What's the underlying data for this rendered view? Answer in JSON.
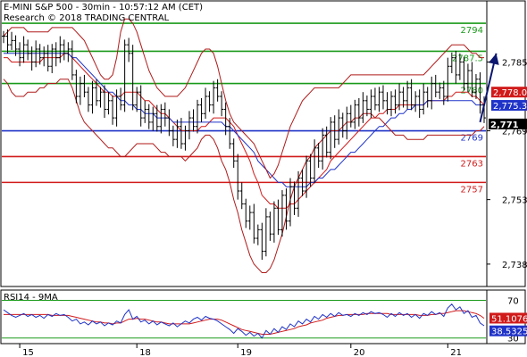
{
  "chart_data": {
    "type": "line",
    "header": {
      "line1": "E-MINI S&P 500 - 30min - 10:57:12 AM (CET)",
      "line2": "Research © 2018 TRADING CENTRAL"
    },
    "price_axis": {
      "ylim": [
        2733,
        2799
      ],
      "ticks": [
        {
          "value": 2785,
          "label": "2,785"
        },
        {
          "value": 2769,
          "label": "2,769"
        },
        {
          "value": 2753,
          "label": "2,753"
        },
        {
          "value": 2738,
          "label": "2,738"
        }
      ]
    },
    "levels": [
      {
        "value": 2794,
        "label": "2794",
        "color": "#1a9a1a"
      },
      {
        "value": 2787.5,
        "label": "2787.5",
        "color": "#1a9a1a"
      },
      {
        "value": 2780,
        "label": "2780",
        "color": "#1a9a1a"
      },
      {
        "value": 2769,
        "label": "2769",
        "color": "#1f33c8"
      },
      {
        "value": 2763,
        "label": "2763",
        "color": "#d11a1a"
      },
      {
        "value": 2757,
        "label": "2757",
        "color": "#d11a1a"
      }
    ],
    "price_tags": [
      {
        "value": 2778.0,
        "label": "2,778.0",
        "bg": "#d11a1a",
        "fg": "#ffffff"
      },
      {
        "value": 2775.33,
        "label": "2,775.33",
        "bg": "#1f33c8",
        "fg": "#ffffff"
      },
      {
        "value": 2771,
        "label": "2,771",
        "bg": "#000000",
        "fg": "#ffffff"
      }
    ],
    "x_axis": {
      "ticks": [
        {
          "i": 4,
          "label": "15"
        },
        {
          "i": 33,
          "label": "18"
        },
        {
          "i": 58,
          "label": "19"
        },
        {
          "i": 86,
          "label": "20"
        },
        {
          "i": 110,
          "label": "21"
        }
      ]
    },
    "price_path": [
      2791,
      2789,
      2790,
      2788,
      2786,
      2789,
      2787,
      2785,
      2788,
      2786,
      2787,
      2784,
      2788,
      2786,
      2789,
      2787,
      2788,
      2782,
      2777,
      2780,
      2778,
      2775,
      2779,
      2776,
      2778,
      2774,
      2776,
      2772,
      2777,
      2775,
      2789,
      2787,
      2775,
      2778,
      2772,
      2774,
      2771,
      2773,
      2770,
      2774,
      2772,
      2769,
      2767,
      2770,
      2766,
      2769,
      2772,
      2770,
      2775,
      2773,
      2777,
      2775,
      2779,
      2777,
      2774,
      2770,
      2766,
      2762,
      2755,
      2752,
      2748,
      2750,
      2744,
      2746,
      2741,
      2749,
      2745,
      2751,
      2746,
      2754,
      2748,
      2756,
      2751,
      2758,
      2755,
      2762,
      2758,
      2765,
      2762,
      2768,
      2764,
      2771,
      2767,
      2772,
      2769,
      2773,
      2771,
      2775,
      2772,
      2776,
      2774,
      2777,
      2775,
      2778,
      2776,
      2774,
      2777,
      2775,
      2778,
      2776,
      2779,
      2775,
      2777,
      2774,
      2778,
      2776,
      2780,
      2778,
      2779,
      2777,
      2784,
      2786,
      2782,
      2785,
      2780,
      2783,
      2778,
      2781,
      2775,
      2772
    ],
    "series": [
      {
        "values": [
          2786,
          2786,
          2785,
          2785,
          2785,
          2785,
          2785,
          2785,
          2785,
          2785,
          2786,
          2786,
          2786,
          2786,
          2786,
          2787,
          2787,
          2786,
          2785,
          2784,
          2783,
          2782,
          2781,
          2780,
          2779,
          2778,
          2778,
          2777,
          2777,
          2777,
          2778,
          2778,
          2778,
          2778,
          2777,
          2776,
          2776,
          2775,
          2774,
          2773,
          2773,
          2772,
          2771,
          2770,
          2769,
          2769,
          2769,
          2769,
          2769,
          2770,
          2770,
          2771,
          2772,
          2772,
          2772,
          2772,
          2771,
          2770,
          2768,
          2766,
          2764,
          2762,
          2759,
          2757,
          2754,
          2753,
          2752,
          2752,
          2751,
          2751,
          2751,
          2752,
          2752,
          2753,
          2754,
          2755,
          2756,
          2757,
          2758,
          2759,
          2760,
          2762,
          2763,
          2764,
          2765,
          2766,
          2767,
          2768,
          2769,
          2770,
          2771,
          2772,
          2772,
          2773,
          2773,
          2774,
          2774,
          2774,
          2775,
          2775,
          2775,
          2775,
          2775,
          2775,
          2775,
          2776,
          2776,
          2776,
          2776,
          2776,
          2777,
          2777,
          2778,
          2778,
          2778,
          2778,
          2777,
          2777,
          2776,
          2775
        ]
      },
      {
        "values": [
          2787,
          2787,
          2787,
          2787,
          2787,
          2787,
          2787,
          2787,
          2787,
          2787,
          2787,
          2787,
          2787,
          2787,
          2787,
          2787,
          2787,
          2786,
          2786,
          2785,
          2784,
          2783,
          2782,
          2781,
          2780,
          2779,
          2778,
          2778,
          2777,
          2776,
          2776,
          2775,
          2775,
          2774,
          2774,
          2773,
          2773,
          2773,
          2772,
          2772,
          2772,
          2772,
          2771,
          2771,
          2771,
          2771,
          2771,
          2771,
          2771,
          2771,
          2771,
          2771,
          2771,
          2771,
          2771,
          2770,
          2770,
          2769,
          2768,
          2767,
          2766,
          2765,
          2764,
          2762,
          2761,
          2760,
          2759,
          2758,
          2757,
          2757,
          2756,
          2756,
          2756,
          2756,
          2756,
          2756,
          2757,
          2757,
          2758,
          2758,
          2759,
          2760,
          2760,
          2761,
          2762,
          2763,
          2764,
          2764,
          2765,
          2766,
          2767,
          2768,
          2769,
          2770,
          2770,
          2771,
          2772,
          2772,
          2773,
          2773,
          2774,
          2774,
          2775,
          2775,
          2775,
          2776,
          2776,
          2776,
          2776,
          2776,
          2776,
          2776,
          2776,
          2776,
          2776,
          2776,
          2776,
          2775,
          2775,
          2775
        ]
      },
      {
        "values": [
          2791,
          2792,
          2793,
          2793,
          2793,
          2793,
          2792,
          2792,
          2792,
          2792,
          2792,
          2792,
          2793,
          2793,
          2793,
          2793,
          2793,
          2793,
          2792,
          2791,
          2790,
          2788,
          2786,
          2784,
          2782,
          2781,
          2781,
          2782,
          2786,
          2792,
          2795,
          2795,
          2794,
          2792,
          2789,
          2786,
          2783,
          2781,
          2779,
          2778,
          2777,
          2777,
          2777,
          2777,
          2778,
          2779,
          2781,
          2783,
          2785,
          2787,
          2788,
          2788,
          2787,
          2784,
          2780,
          2776,
          2773,
          2771,
          2770,
          2769,
          2768,
          2767,
          2766,
          2764,
          2762,
          2760,
          2758,
          2759,
          2761,
          2764,
          2767,
          2770,
          2772,
          2774,
          2776,
          2777,
          2778,
          2779,
          2779,
          2779,
          2779,
          2779,
          2779,
          2779,
          2780,
          2781,
          2782,
          2782,
          2782,
          2782,
          2782,
          2782,
          2782,
          2782,
          2782,
          2782,
          2782,
          2782,
          2782,
          2782,
          2782,
          2782,
          2782,
          2782,
          2782,
          2783,
          2784,
          2785,
          2786,
          2787,
          2788,
          2789,
          2789,
          2789,
          2789,
          2788,
          2787,
          2787,
          2786,
          2786
        ]
      },
      {
        "values": [
          2781,
          2780,
          2778,
          2777,
          2777,
          2777,
          2778,
          2778,
          2778,
          2779,
          2779,
          2780,
          2780,
          2780,
          2781,
          2781,
          2781,
          2779,
          2776,
          2773,
          2771,
          2770,
          2769,
          2768,
          2767,
          2766,
          2765,
          2765,
          2764,
          2763,
          2763,
          2764,
          2765,
          2766,
          2766,
          2766,
          2766,
          2766,
          2765,
          2764,
          2764,
          2763,
          2763,
          2763,
          2763,
          2762,
          2763,
          2764,
          2765,
          2767,
          2768,
          2768,
          2767,
          2765,
          2762,
          2760,
          2757,
          2753,
          2750,
          2746,
          2743,
          2740,
          2738,
          2737,
          2736,
          2736,
          2737,
          2739,
          2742,
          2745,
          2749,
          2753,
          2756,
          2758,
          2760,
          2762,
          2763,
          2765,
          2766,
          2767,
          2768,
          2769,
          2769,
          2769,
          2770,
          2771,
          2771,
          2772,
          2772,
          2773,
          2773,
          2773,
          2772,
          2772,
          2771,
          2770,
          2769,
          2768,
          2768,
          2768,
          2767,
          2767,
          2767,
          2767,
          2767,
          2768,
          2768,
          2768,
          2768,
          2768,
          2768,
          2768,
          2768,
          2768,
          2768,
          2768,
          2768,
          2769,
          2769,
          2770
        ]
      }
    ],
    "rsi": {
      "title": "RSI14 - 9MA",
      "ylim": [
        25,
        80
      ],
      "ticks": [
        {
          "value": 70,
          "label": "70"
        },
        {
          "value": 30,
          "label": "30"
        }
      ],
      "tags": [
        {
          "value": 51.1076,
          "label": "51.1076",
          "bg": "#d11a1a",
          "fg": "#ffffff"
        },
        {
          "value": 38.5325,
          "label": "38.5325",
          "bg": "#1f33c8",
          "fg": "#ffffff"
        }
      ],
      "rsi_values": [
        60,
        57,
        54,
        52,
        54,
        56,
        53,
        55,
        52,
        54,
        51,
        55,
        53,
        56,
        54,
        55,
        52,
        48,
        50,
        45,
        47,
        44,
        48,
        45,
        47,
        43,
        46,
        44,
        48,
        46,
        55,
        60,
        50,
        53,
        47,
        49,
        45,
        48,
        44,
        47,
        45,
        43,
        46,
        42,
        45,
        48,
        46,
        50,
        52,
        49,
        53,
        51,
        50,
        48,
        45,
        42,
        39,
        35,
        40,
        37,
        33,
        36,
        32,
        35,
        30,
        38,
        34,
        40,
        36,
        42,
        39,
        45,
        42,
        48,
        45,
        50,
        47,
        53,
        50,
        55,
        52,
        56,
        53,
        57,
        54,
        55,
        53,
        56,
        54,
        57,
        55,
        58,
        56,
        57,
        55,
        52,
        56,
        53,
        57,
        54,
        56,
        52,
        55,
        51,
        56,
        54,
        58,
        55,
        57,
        53,
        62,
        66,
        60,
        63,
        56,
        59,
        52,
        54,
        46,
        43
      ],
      "ma_values": [
        55,
        55,
        55,
        55,
        55,
        55,
        55,
        55,
        55,
        55,
        55,
        55,
        54,
        54,
        54,
        54,
        54,
        53,
        52,
        51,
        50,
        49,
        48,
        47,
        47,
        46,
        46,
        45,
        46,
        46,
        48,
        50,
        50,
        51,
        50,
        50,
        49,
        48,
        47,
        47,
        46,
        45,
        45,
        45,
        45,
        45,
        45,
        46,
        47,
        48,
        49,
        50,
        50,
        50,
        49,
        47,
        45,
        43,
        41,
        39,
        38,
        37,
        36,
        35,
        34,
        34,
        34,
        35,
        36,
        37,
        38,
        39,
        40,
        42,
        43,
        44,
        46,
        47,
        48,
        49,
        51,
        52,
        53,
        54,
        54,
        55,
        55,
        55,
        55,
        55,
        56,
        56,
        56,
        56,
        56,
        56,
        55,
        55,
        55,
        55,
        55,
        55,
        55,
        54,
        54,
        54,
        55,
        55,
        56,
        56,
        57,
        58,
        59,
        59,
        59,
        58,
        57,
        56,
        54,
        51
      ]
    },
    "arrow": {
      "from": [
        118,
        2771
      ],
      "to": [
        122,
        2787
      ]
    }
  }
}
